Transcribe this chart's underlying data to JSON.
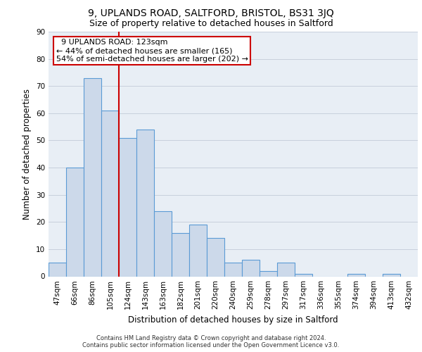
{
  "title1": "9, UPLANDS ROAD, SALTFORD, BRISTOL, BS31 3JQ",
  "title2": "Size of property relative to detached houses in Saltford",
  "xlabel": "Distribution of detached houses by size in Saltford",
  "ylabel": "Number of detached properties",
  "categories": [
    "47sqm",
    "66sqm",
    "86sqm",
    "105sqm",
    "124sqm",
    "143sqm",
    "163sqm",
    "182sqm",
    "201sqm",
    "220sqm",
    "240sqm",
    "259sqm",
    "278sqm",
    "297sqm",
    "317sqm",
    "336sqm",
    "355sqm",
    "374sqm",
    "394sqm",
    "413sqm",
    "432sqm"
  ],
  "values": [
    5,
    40,
    73,
    61,
    51,
    54,
    24,
    16,
    19,
    14,
    5,
    6,
    2,
    5,
    1,
    0,
    0,
    1,
    0,
    1,
    0
  ],
  "bar_color": "#ccd9ea",
  "bar_edge_color": "#5b9bd5",
  "annotation_text1": "9 UPLANDS ROAD: 123sqm",
  "annotation_text2": "← 44% of detached houses are smaller (165)",
  "annotation_text3": "54% of semi-detached houses are larger (202) →",
  "annotation_box_color": "#ffffff",
  "annotation_box_edge": "#cc0000",
  "vline_color": "#cc0000",
  "ylim": [
    0,
    90
  ],
  "yticks": [
    0,
    10,
    20,
    30,
    40,
    50,
    60,
    70,
    80,
    90
  ],
  "grid_color": "#c8d0dc",
  "background_color": "#e8eef5",
  "footer1": "Contains HM Land Registry data © Crown copyright and database right 2024.",
  "footer2": "Contains public sector information licensed under the Open Government Licence v3.0.",
  "title1_fontsize": 10,
  "title2_fontsize": 9,
  "tick_fontsize": 7.5,
  "ylabel_fontsize": 8.5,
  "xlabel_fontsize": 8.5,
  "annotation_fontsize": 8,
  "footer_fontsize": 6
}
